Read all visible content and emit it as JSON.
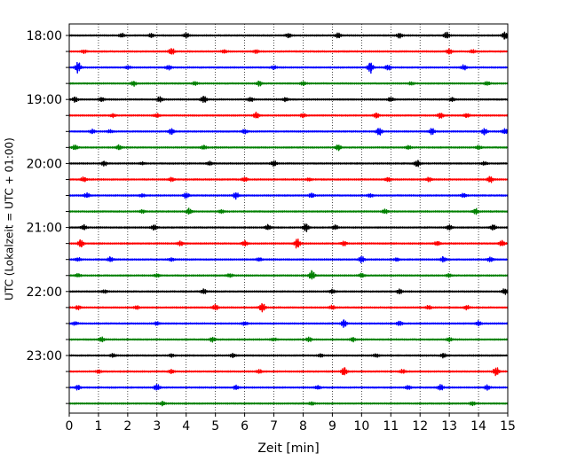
{
  "chart_data": {
    "type": "line",
    "title": "",
    "xlabel": "Zeit  [min]",
    "ylabel": "UTC (Lokalzeit = UTC + 01:00)",
    "xlim": [
      0,
      15
    ],
    "x_ticks": [
      "0",
      "1",
      "2",
      "3",
      "4",
      "5",
      "6",
      "7",
      "8",
      "9",
      "10",
      "11",
      "12",
      "13",
      "14",
      "15"
    ],
    "y_tick_labels": [
      "18:00",
      "19:00",
      "20:00",
      "21:00",
      "22:00",
      "23:00"
    ],
    "trace_interval_minutes": 15,
    "trace_color_cycle": [
      "#000000",
      "#ff0000",
      "#0000ff",
      "#008000"
    ],
    "vertical_grid": "dotted",
    "series": [
      {
        "name": "18:00",
        "color": "#000000",
        "events": [
          [
            1.8,
            0.5
          ],
          [
            2.8,
            0.5
          ],
          [
            4.0,
            0.6
          ],
          [
            7.5,
            0.6
          ],
          [
            9.2,
            0.7
          ],
          [
            11.3,
            0.6
          ],
          [
            12.9,
            0.8
          ],
          [
            14.9,
            1.0
          ]
        ]
      },
      {
        "name": "18:15",
        "color": "#ff0000",
        "events": [
          [
            0.5,
            0.4
          ],
          [
            3.5,
            0.9
          ],
          [
            5.3,
            0.4
          ],
          [
            6.4,
            0.4
          ],
          [
            13.0,
            0.7
          ],
          [
            13.8,
            0.4
          ]
        ]
      },
      {
        "name": "18:30",
        "color": "#0000ff",
        "events": [
          [
            0.3,
            1.5
          ],
          [
            2.0,
            0.4
          ],
          [
            3.4,
            0.6
          ],
          [
            7.0,
            0.4
          ],
          [
            10.3,
            1.6
          ],
          [
            10.9,
            0.8
          ],
          [
            13.5,
            0.6
          ]
        ]
      },
      {
        "name": "18:45",
        "color": "#008000",
        "events": [
          [
            2.2,
            0.6
          ],
          [
            4.3,
            0.4
          ],
          [
            6.5,
            0.6
          ],
          [
            8.0,
            0.5
          ],
          [
            11.7,
            0.4
          ],
          [
            14.3,
            0.5
          ]
        ]
      },
      {
        "name": "19:00",
        "color": "#000000",
        "events": [
          [
            0.2,
            0.6
          ],
          [
            1.1,
            0.6
          ],
          [
            3.1,
            0.7
          ],
          [
            4.6,
            1.0
          ],
          [
            6.2,
            0.6
          ],
          [
            7.4,
            0.5
          ],
          [
            11.0,
            0.6
          ],
          [
            13.1,
            0.5
          ]
        ]
      },
      {
        "name": "19:15",
        "color": "#ff0000",
        "events": [
          [
            1.5,
            0.4
          ],
          [
            3.0,
            0.5
          ],
          [
            6.4,
            0.8
          ],
          [
            8.0,
            0.5
          ],
          [
            10.5,
            0.7
          ],
          [
            12.7,
            0.8
          ],
          [
            13.6,
            0.6
          ]
        ]
      },
      {
        "name": "19:30",
        "color": "#0000ff",
        "events": [
          [
            0.8,
            0.5
          ],
          [
            1.4,
            0.4
          ],
          [
            3.5,
            0.8
          ],
          [
            6.0,
            0.6
          ],
          [
            10.6,
            1.1
          ],
          [
            12.4,
            0.8
          ],
          [
            14.2,
            0.8
          ],
          [
            14.9,
            0.7
          ]
        ]
      },
      {
        "name": "19:45",
        "color": "#008000",
        "events": [
          [
            0.2,
            0.6
          ],
          [
            1.7,
            0.7
          ],
          [
            4.6,
            0.5
          ],
          [
            9.2,
            0.8
          ],
          [
            11.6,
            0.5
          ],
          [
            14.0,
            0.5
          ]
        ]
      },
      {
        "name": "20:00",
        "color": "#000000",
        "events": [
          [
            1.2,
            0.6
          ],
          [
            2.5,
            0.3
          ],
          [
            4.8,
            0.5
          ],
          [
            7.0,
            0.7
          ],
          [
            11.9,
            0.9
          ],
          [
            14.2,
            0.4
          ]
        ]
      },
      {
        "name": "20:15",
        "color": "#ff0000",
        "events": [
          [
            0.5,
            0.6
          ],
          [
            3.5,
            0.5
          ],
          [
            6.0,
            0.6
          ],
          [
            8.2,
            0.4
          ],
          [
            10.9,
            0.5
          ],
          [
            12.3,
            0.5
          ],
          [
            14.4,
            0.8
          ]
        ]
      },
      {
        "name": "20:30",
        "color": "#0000ff",
        "events": [
          [
            0.6,
            0.6
          ],
          [
            2.5,
            0.4
          ],
          [
            4.0,
            0.7
          ],
          [
            5.7,
            0.8
          ],
          [
            8.3,
            0.6
          ],
          [
            10.3,
            0.4
          ],
          [
            13.5,
            0.5
          ]
        ]
      },
      {
        "name": "20:45",
        "color": "#008000",
        "events": [
          [
            2.5,
            0.4
          ],
          [
            4.1,
            0.8
          ],
          [
            5.2,
            0.5
          ],
          [
            10.8,
            0.6
          ],
          [
            13.9,
            0.7
          ]
        ]
      },
      {
        "name": "21:00",
        "color": "#000000",
        "events": [
          [
            0.5,
            0.6
          ],
          [
            2.9,
            0.8
          ],
          [
            6.8,
            0.7
          ],
          [
            8.1,
            1.0
          ],
          [
            9.1,
            0.6
          ],
          [
            13.0,
            0.7
          ],
          [
            14.5,
            0.8
          ]
        ]
      },
      {
        "name": "21:15",
        "color": "#ff0000",
        "events": [
          [
            0.4,
            1.1
          ],
          [
            3.8,
            0.6
          ],
          [
            6.0,
            0.7
          ],
          [
            7.8,
            1.3
          ],
          [
            9.4,
            0.6
          ],
          [
            12.6,
            0.6
          ],
          [
            14.8,
            0.7
          ]
        ]
      },
      {
        "name": "21:30",
        "color": "#0000ff",
        "events": [
          [
            0.3,
            0.5
          ],
          [
            1.4,
            0.7
          ],
          [
            3.5,
            0.4
          ],
          [
            6.5,
            0.5
          ],
          [
            10.0,
            0.8
          ],
          [
            11.2,
            0.4
          ],
          [
            12.8,
            0.7
          ],
          [
            14.4,
            0.6
          ]
        ]
      },
      {
        "name": "21:45",
        "color": "#008000",
        "events": [
          [
            0.3,
            0.4
          ],
          [
            3.0,
            0.4
          ],
          [
            5.5,
            0.5
          ],
          [
            8.3,
            1.3
          ],
          [
            10.0,
            0.6
          ],
          [
            13.0,
            0.4
          ]
        ]
      },
      {
        "name": "22:00",
        "color": "#000000",
        "events": [
          [
            1.2,
            0.4
          ],
          [
            4.6,
            0.6
          ],
          [
            9.0,
            0.5
          ],
          [
            11.3,
            0.6
          ],
          [
            14.9,
            0.7
          ]
        ]
      },
      {
        "name": "22:15",
        "color": "#ff0000",
        "events": [
          [
            0.3,
            0.5
          ],
          [
            2.3,
            0.4
          ],
          [
            5.0,
            0.7
          ],
          [
            6.6,
            1.2
          ],
          [
            9.0,
            0.5
          ],
          [
            12.3,
            0.5
          ],
          [
            13.6,
            0.5
          ]
        ]
      },
      {
        "name": "22:30",
        "color": "#0000ff",
        "events": [
          [
            0.2,
            0.4
          ],
          [
            3.0,
            0.4
          ],
          [
            6.0,
            0.4
          ],
          [
            9.4,
            1.0
          ],
          [
            11.3,
            0.5
          ],
          [
            14.0,
            0.6
          ]
        ]
      },
      {
        "name": "22:45",
        "color": "#008000",
        "events": [
          [
            1.1,
            0.6
          ],
          [
            4.9,
            0.6
          ],
          [
            7.0,
            0.4
          ],
          [
            8.2,
            0.6
          ],
          [
            9.7,
            0.5
          ],
          [
            13.0,
            0.5
          ]
        ]
      },
      {
        "name": "23:00",
        "color": "#000000",
        "events": [
          [
            1.5,
            0.4
          ],
          [
            3.5,
            0.4
          ],
          [
            5.6,
            0.5
          ],
          [
            8.6,
            0.4
          ],
          [
            10.5,
            0.4
          ],
          [
            12.8,
            0.5
          ]
        ]
      },
      {
        "name": "23:15",
        "color": "#ff0000",
        "events": [
          [
            1.0,
            0.4
          ],
          [
            3.5,
            0.5
          ],
          [
            6.5,
            0.4
          ],
          [
            9.4,
            1.2
          ],
          [
            11.4,
            0.5
          ],
          [
            14.6,
            1.2
          ]
        ]
      },
      {
        "name": "23:30",
        "color": "#0000ff",
        "events": [
          [
            0.3,
            0.6
          ],
          [
            3.0,
            0.9
          ],
          [
            5.7,
            0.5
          ],
          [
            8.5,
            0.5
          ],
          [
            11.6,
            0.6
          ],
          [
            12.7,
            0.8
          ],
          [
            14.3,
            0.6
          ]
        ]
      },
      {
        "name": "23:45",
        "color": "#008000",
        "events": [
          [
            3.2,
            0.5
          ],
          [
            8.3,
            0.4
          ],
          [
            13.8,
            0.5
          ]
        ]
      }
    ]
  }
}
